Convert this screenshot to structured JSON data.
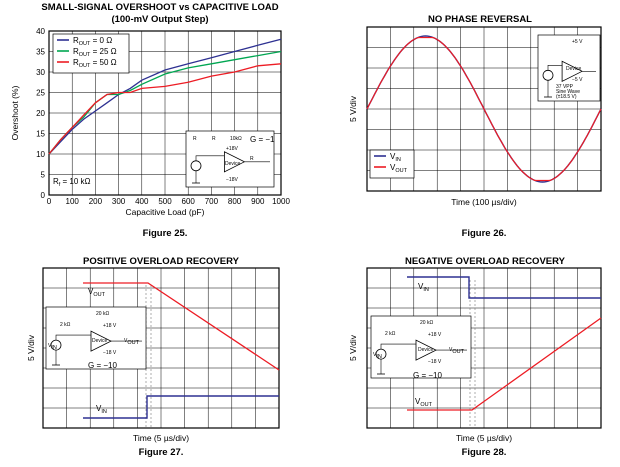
{
  "chart_data": [
    {
      "type": "line",
      "title": "SMALL-SIGNAL OVERSHOOT vs CAPACITIVE LOAD",
      "subtitle": "(100-mV Output Step)",
      "xlabel": "Capacitive Load (pF)",
      "ylabel": "Overshoot (%)",
      "xlim": [
        0,
        1000
      ],
      "ylim": [
        0,
        40
      ],
      "x_ticks": [
        "0",
        "100",
        "200",
        "300",
        "400",
        "500",
        "600",
        "700",
        "800",
        "900",
        "1000"
      ],
      "y_ticks": [
        "0",
        "5",
        "10",
        "15",
        "20",
        "25",
        "30",
        "35",
        "40"
      ],
      "grid": true,
      "legend_position": "top-left",
      "series": [
        {
          "name_parts": [
            "R",
            "OUT",
            " = 0 Ω"
          ],
          "color": "#2e3192",
          "x": [
            0,
            50,
            100,
            150,
            200,
            250,
            300,
            350,
            400,
            500,
            600,
            700,
            800,
            900,
            1000
          ],
          "values": [
            10,
            13,
            16,
            18.5,
            20.5,
            22.5,
            24.5,
            26,
            28,
            30.5,
            32,
            33.5,
            35,
            36.5,
            38
          ]
        },
        {
          "name_parts": [
            "R",
            "OUT",
            " = 25 Ω"
          ],
          "color": "#00a651",
          "x": [
            0,
            50,
            100,
            150,
            200,
            250,
            300,
            350,
            400,
            500,
            600,
            700,
            800,
            900,
            1000
          ],
          "values": [
            10,
            13.5,
            16.5,
            19,
            22.5,
            24.5,
            24.5,
            25.5,
            27,
            29.5,
            31,
            32,
            33,
            34,
            35
          ]
        },
        {
          "name_parts": [
            "R",
            "OUT",
            " = 50 Ω"
          ],
          "color": "#ed1c24",
          "x": [
            0,
            50,
            100,
            150,
            200,
            250,
            300,
            350,
            400,
            500,
            600,
            700,
            800,
            900,
            1000
          ],
          "values": [
            10,
            13.5,
            16.5,
            19.5,
            22.5,
            24.5,
            25,
            25,
            26,
            26.5,
            27.5,
            29,
            30,
            31.5,
            32
          ]
        }
      ],
      "annotations": [
        "G = −1"
      ],
      "annotation_rf_parts": [
        "R",
        "f",
        " = 10 kΩ"
      ],
      "figure_label": "Figure 25."
    },
    {
      "type": "line",
      "title": "NO PHASE REVERSAL",
      "xlabel": "Time (100 µs/div)",
      "ylabel": "5 V/div",
      "grid": true,
      "legend_position": "bottom-left",
      "series": [
        {
          "name_parts": [
            "V",
            "IN",
            ""
          ],
          "color": "#2e3192"
        },
        {
          "name_parts": [
            "V",
            "OUT",
            ""
          ],
          "color": "#ed1c24"
        }
      ],
      "inset_labels": [
        "+5 V",
        "−5 V",
        "Device",
        "37 V",
        "PP",
        "Sine Wave",
        "(±18.5 V)"
      ],
      "figure_label": "Figure 26."
    },
    {
      "type": "line",
      "title": "POSITIVE OVERLOAD RECOVERY",
      "xlabel": "Time (5 µs/div)",
      "ylabel": "5 V/div",
      "grid": true,
      "series": [
        {
          "name_parts": [
            "V",
            "OUT",
            ""
          ],
          "color": "#ed1c24"
        },
        {
          "name_parts": [
            "V",
            "IN",
            ""
          ],
          "color": "#2e3192"
        }
      ],
      "annotations": [
        "G = −10"
      ],
      "inset_labels": [
        "20 kΩ",
        "2 kΩ",
        "+18 V",
        "−18 V",
        "Device",
        "V",
        "OUT",
        "V",
        "IN"
      ],
      "figure_label": "Figure 27."
    },
    {
      "type": "line",
      "title": "NEGATIVE OVERLOAD RECOVERY",
      "xlabel": "Time (5 µs/div)",
      "ylabel": "5 V/div",
      "grid": true,
      "series": [
        {
          "name_parts": [
            "V",
            "IN",
            ""
          ],
          "color": "#2e3192"
        },
        {
          "name_parts": [
            "V",
            "OUT",
            ""
          ],
          "color": "#ed1c24"
        }
      ],
      "annotations": [
        "G = −10"
      ],
      "inset_labels": [
        "20 kΩ",
        "2 kΩ",
        "+18 V",
        "−18 V",
        "Device",
        "V",
        "OUT",
        "V",
        "IN"
      ],
      "figure_label": "Figure 28."
    }
  ],
  "colors": {
    "blue": "#2e3192",
    "green": "#00a651",
    "red": "#ed1c24",
    "plot_bg": "#ffffff"
  }
}
